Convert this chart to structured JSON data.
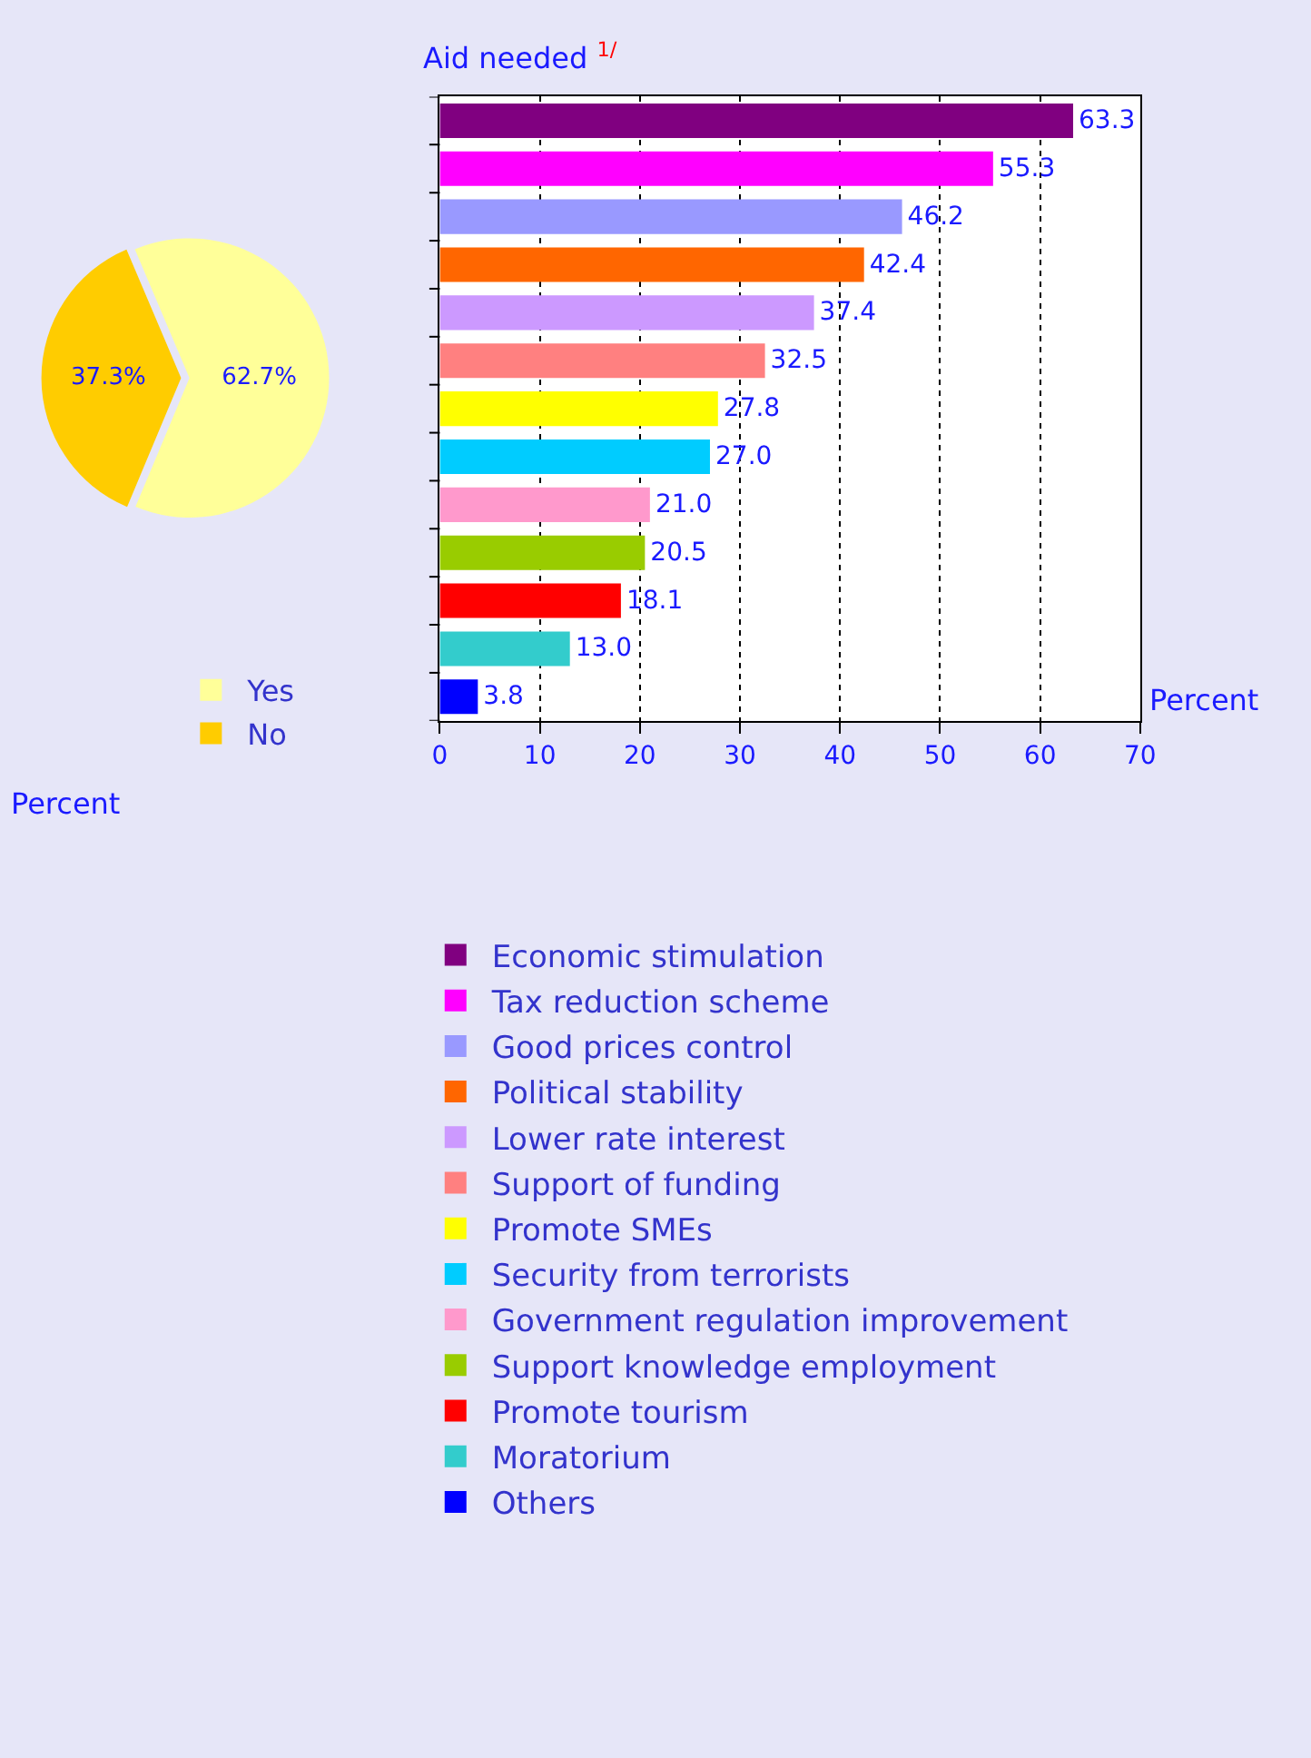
{
  "chart_data": [
    {
      "type": "pie",
      "categories": [
        "Yes",
        "No"
      ],
      "values": [
        62.7,
        37.3
      ],
      "colors": [
        "#ffff99",
        "#ffcc00"
      ],
      "value_labels": [
        "62.7%",
        "37.3%"
      ],
      "legend": "bottom",
      "annotations": [
        "Percent"
      ]
    },
    {
      "type": "bar",
      "orientation": "horizontal",
      "title": "Aid needed $^{1/}$",
      "xlabel": "Percent",
      "categories": [
        null,
        null,
        null,
        null,
        null,
        null,
        null,
        null,
        null,
        null,
        null,
        null,
        null
      ],
      "series": [
        {
          "name": "Economic stimulation",
          "color": "#800080",
          "values": [
            63.3,
            null,
            null,
            null,
            null,
            null,
            null,
            null,
            null,
            null,
            null,
            null,
            null
          ],
          "value_labels": [
            "63.3",
            null,
            null,
            null,
            null,
            null,
            null,
            null,
            null,
            null,
            null,
            null,
            null
          ]
        },
        {
          "name": "Tax reduction scheme",
          "color": "#ff00ff",
          "values": [
            null,
            55.3,
            null,
            null,
            null,
            null,
            null,
            null,
            null,
            null,
            null,
            null,
            null
          ],
          "value_labels": [
            null,
            "55.3",
            null,
            null,
            null,
            null,
            null,
            null,
            null,
            null,
            null,
            null,
            null
          ]
        },
        {
          "name": "Good prices control",
          "color": "#9999ff",
          "values": [
            null,
            null,
            46.2,
            null,
            null,
            null,
            null,
            null,
            null,
            null,
            null,
            null,
            null
          ],
          "value_labels": [
            null,
            null,
            "46.2",
            null,
            null,
            null,
            null,
            null,
            null,
            null,
            null,
            null,
            null
          ]
        },
        {
          "name": "Political stability",
          "color": "#ff6600",
          "values": [
            null,
            null,
            null,
            42.4,
            null,
            null,
            null,
            null,
            null,
            null,
            null,
            null,
            null
          ],
          "value_labels": [
            null,
            null,
            null,
            "42.4",
            null,
            null,
            null,
            null,
            null,
            null,
            null,
            null,
            null
          ]
        },
        {
          "name": "Lower rate interest",
          "color": "#cc99ff",
          "values": [
            null,
            null,
            null,
            null,
            37.4,
            null,
            null,
            null,
            null,
            null,
            null,
            null,
            null
          ],
          "value_labels": [
            null,
            null,
            null,
            null,
            "37.4",
            null,
            null,
            null,
            null,
            null,
            null,
            null,
            null
          ]
        },
        {
          "name": "Support of funding",
          "color": "#ff8080",
          "values": [
            null,
            null,
            null,
            null,
            null,
            32.5,
            null,
            null,
            null,
            null,
            null,
            null,
            null
          ],
          "value_labels": [
            null,
            null,
            null,
            null,
            null,
            "32.5",
            null,
            null,
            null,
            null,
            null,
            null,
            null
          ]
        },
        {
          "name": "Promote SMEs",
          "color": "#ffff00",
          "values": [
            null,
            null,
            null,
            null,
            null,
            null,
            27.8,
            null,
            null,
            null,
            null,
            null,
            null
          ],
          "value_labels": [
            null,
            null,
            null,
            null,
            null,
            null,
            "27.8",
            null,
            null,
            null,
            null,
            null,
            null
          ]
        },
        {
          "name": "Security from terrorists",
          "color": "#00ccff",
          "values": [
            null,
            null,
            null,
            null,
            null,
            null,
            null,
            27.0,
            null,
            null,
            null,
            null,
            null
          ],
          "value_labels": [
            null,
            null,
            null,
            null,
            null,
            null,
            null,
            "27.0",
            null,
            null,
            null,
            null,
            null
          ]
        },
        {
          "name": "Government regulation improvement",
          "color": "#ff99cc",
          "values": [
            null,
            null,
            null,
            null,
            null,
            null,
            null,
            null,
            21.0,
            null,
            null,
            null,
            null
          ],
          "value_labels": [
            null,
            null,
            null,
            null,
            null,
            null,
            null,
            null,
            "21.0",
            null,
            null,
            null,
            null
          ]
        },
        {
          "name": "Support knowledge employment",
          "color": "#99cc00",
          "values": [
            null,
            null,
            null,
            null,
            null,
            null,
            null,
            null,
            null,
            20.5,
            null,
            null,
            null
          ],
          "value_labels": [
            null,
            null,
            null,
            null,
            null,
            null,
            null,
            null,
            null,
            "20.5",
            null,
            null,
            null
          ]
        },
        {
          "name": "Promote tourism",
          "color": "#ff0000",
          "values": [
            null,
            null,
            null,
            null,
            null,
            null,
            null,
            null,
            null,
            null,
            18.1,
            null,
            null
          ],
          "value_labels": [
            null,
            null,
            null,
            null,
            null,
            null,
            null,
            null,
            null,
            null,
            "18.1",
            null,
            null
          ]
        },
        {
          "name": "Moratorium",
          "color": "#33cccc",
          "values": [
            null,
            null,
            null,
            null,
            null,
            null,
            null,
            null,
            null,
            null,
            null,
            13.0,
            null
          ],
          "value_labels": [
            null,
            null,
            null,
            null,
            null,
            null,
            null,
            null,
            null,
            null,
            null,
            "13.0",
            null
          ]
        },
        {
          "name": "Others",
          "color": "#0000ff",
          "values": [
            null,
            null,
            null,
            null,
            null,
            null,
            null,
            null,
            null,
            null,
            null,
            null,
            3.8
          ],
          "value_labels": [
            null,
            null,
            null,
            null,
            null,
            null,
            null,
            null,
            null,
            null,
            null,
            null,
            "3.8"
          ]
        }
      ],
      "xlim": [
        0,
        70
      ],
      "xticks": [
        0,
        10,
        20,
        30,
        40,
        50,
        60,
        70
      ],
      "grid": "x",
      "tick_labels": "x",
      "legend": "bottom"
    }
  ]
}
